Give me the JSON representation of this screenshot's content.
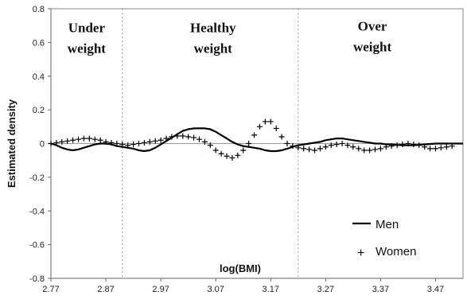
{
  "chart_data": {
    "type": "line",
    "xlabel": "log(BMI)",
    "ylabel": "Estimated density",
    "xlim": [
      2.77,
      3.52
    ],
    "ylim": [
      -0.8,
      0.8
    ],
    "x_ticks": [
      "2.77",
      "2.87",
      "2.97",
      "3.07",
      "3.17",
      "3.27",
      "3.37",
      "3.47"
    ],
    "x_tick_values": [
      2.77,
      2.87,
      2.97,
      3.07,
      3.17,
      3.27,
      3.37,
      3.47
    ],
    "y_ticks": [
      "0.8",
      "0.6",
      "0.4",
      "0.2",
      "0",
      "-0.2",
      "-0.4",
      "-0.6",
      "-0.8"
    ],
    "y_tick_values": [
      0.8,
      0.6,
      0.4,
      0.2,
      0,
      -0.2,
      -0.4,
      -0.6,
      -0.8
    ],
    "vertical_lines": [
      2.9,
      3.22
    ],
    "regions": [
      {
        "lines": [
          "Under",
          "weight"
        ],
        "x": 2.835,
        "y_top": 0.66
      },
      {
        "lines": [
          "Healthy",
          "weight"
        ],
        "x": 3.065,
        "y_top": 0.66
      },
      {
        "lines": [
          "Over",
          "weight"
        ],
        "x": 3.355,
        "y_top": 0.67
      }
    ],
    "legend_position": "bottom-right",
    "series": [
      {
        "name": "Men",
        "style": "line",
        "color": "#000000",
        "x": [
          2.77,
          2.78,
          2.79,
          2.8,
          2.81,
          2.82,
          2.83,
          2.84,
          2.85,
          2.86,
          2.87,
          2.88,
          2.89,
          2.9,
          2.91,
          2.92,
          2.93,
          2.94,
          2.95,
          2.96,
          2.97,
          2.98,
          2.99,
          3.0,
          3.01,
          3.02,
          3.03,
          3.04,
          3.05,
          3.06,
          3.07,
          3.08,
          3.09,
          3.1,
          3.11,
          3.12,
          3.13,
          3.14,
          3.15,
          3.16,
          3.17,
          3.18,
          3.19,
          3.2,
          3.21,
          3.22,
          3.23,
          3.24,
          3.25,
          3.26,
          3.27,
          3.28,
          3.29,
          3.3,
          3.31,
          3.32,
          3.33,
          3.34,
          3.35,
          3.36,
          3.37,
          3.38,
          3.39,
          3.4,
          3.41,
          3.42,
          3.43,
          3.44,
          3.45,
          3.46,
          3.47,
          3.48,
          3.49,
          3.5,
          3.51,
          3.52
        ],
        "y": [
          0.0,
          -0.01,
          -0.025,
          -0.035,
          -0.04,
          -0.035,
          -0.025,
          -0.015,
          -0.005,
          0.0,
          0.0,
          -0.005,
          -0.015,
          -0.02,
          -0.025,
          -0.03,
          -0.04,
          -0.045,
          -0.04,
          -0.025,
          -0.005,
          0.015,
          0.035,
          0.055,
          0.075,
          0.085,
          0.09,
          0.09,
          0.09,
          0.085,
          0.07,
          0.05,
          0.03,
          0.01,
          -0.005,
          -0.015,
          -0.02,
          -0.025,
          -0.03,
          -0.04,
          -0.045,
          -0.045,
          -0.04,
          -0.03,
          -0.02,
          -0.01,
          -0.005,
          0.0,
          0.005,
          0.01,
          0.02,
          0.025,
          0.03,
          0.03,
          0.025,
          0.02,
          0.015,
          0.01,
          0.005,
          0.0,
          0.0,
          -0.005,
          -0.005,
          -0.008,
          -0.01,
          -0.01,
          -0.01,
          -0.008,
          -0.005,
          -0.003,
          0.0,
          0.0,
          0.0,
          0.0,
          0.0,
          0.0
        ]
      },
      {
        "name": "Women",
        "style": "plus",
        "color": "#000000",
        "x": [
          2.77,
          2.78,
          2.79,
          2.8,
          2.81,
          2.82,
          2.83,
          2.84,
          2.85,
          2.86,
          2.87,
          2.88,
          2.89,
          2.9,
          2.91,
          2.92,
          2.93,
          2.94,
          2.95,
          2.96,
          2.97,
          2.98,
          2.99,
          3.0,
          3.01,
          3.02,
          3.03,
          3.04,
          3.05,
          3.06,
          3.07,
          3.08,
          3.09,
          3.1,
          3.11,
          3.12,
          3.13,
          3.14,
          3.15,
          3.16,
          3.17,
          3.18,
          3.19,
          3.2,
          3.21,
          3.22,
          3.23,
          3.24,
          3.25,
          3.26,
          3.27,
          3.28,
          3.29,
          3.3,
          3.31,
          3.32,
          3.33,
          3.34,
          3.35,
          3.36,
          3.37,
          3.38,
          3.39,
          3.4,
          3.41,
          3.42,
          3.43,
          3.44,
          3.45,
          3.46,
          3.47,
          3.48,
          3.49,
          3.5
        ],
        "y": [
          0.0,
          0.005,
          0.01,
          0.015,
          0.02,
          0.025,
          0.03,
          0.03,
          0.025,
          0.02,
          0.01,
          0.005,
          0.0,
          -0.005,
          -0.01,
          -0.005,
          0.0,
          0.005,
          0.01,
          0.015,
          0.02,
          0.03,
          0.04,
          0.045,
          0.045,
          0.04,
          0.035,
          0.025,
          0.01,
          -0.01,
          -0.04,
          -0.06,
          -0.075,
          -0.085,
          -0.07,
          -0.04,
          0.0,
          0.05,
          0.1,
          0.13,
          0.13,
          0.09,
          0.04,
          0.0,
          -0.015,
          -0.025,
          -0.03,
          -0.035,
          -0.04,
          -0.03,
          -0.02,
          -0.01,
          -0.005,
          0.0,
          -0.01,
          -0.02,
          -0.03,
          -0.04,
          -0.04,
          -0.035,
          -0.03,
          -0.02,
          -0.015,
          -0.01,
          -0.005,
          0.0,
          -0.005,
          -0.01,
          -0.02,
          -0.03,
          -0.03,
          -0.025,
          -0.02,
          -0.015
        ]
      }
    ]
  }
}
